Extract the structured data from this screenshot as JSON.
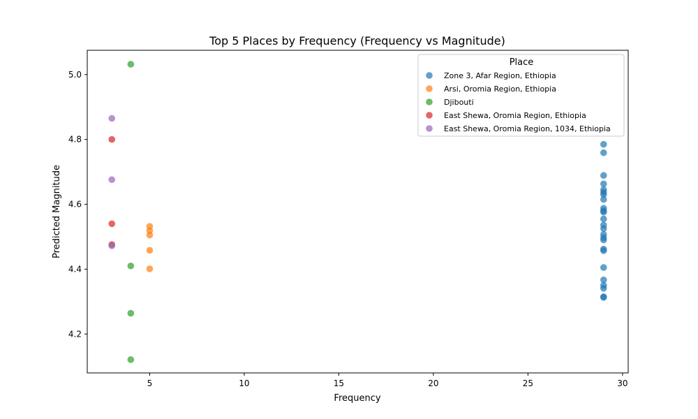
{
  "chart_data": {
    "type": "scatter",
    "title": "Top 5 Places by Frequency (Frequency vs Magnitude)",
    "xlabel": "Frequency",
    "ylabel": "Predicted Magnitude",
    "xlim": [
      1.7,
      30.3
    ],
    "ylim": [
      4.08,
      5.075
    ],
    "xticks": [
      5,
      10,
      15,
      20,
      25,
      30
    ],
    "yticks": [
      4.2,
      4.4,
      4.6,
      4.8,
      5.0
    ],
    "xtick_labels": [
      "5",
      "10",
      "15",
      "20",
      "25",
      "30"
    ],
    "ytick_labels": [
      "4.2",
      "4.4",
      "4.6",
      "4.8",
      "5.0"
    ],
    "grid": false,
    "legend": {
      "title": "Place",
      "placement": "top-right"
    },
    "series": [
      {
        "name": "Zone 3, Afar Region, Ethiopia",
        "color": "#1f77b4",
        "points": [
          [
            29,
            4.785
          ],
          [
            29,
            4.759
          ],
          [
            29,
            4.689
          ],
          [
            29,
            4.663
          ],
          [
            29,
            4.645
          ],
          [
            29,
            4.637
          ],
          [
            29,
            4.63
          ],
          [
            29,
            4.615
          ],
          [
            29,
            4.588
          ],
          [
            29,
            4.58
          ],
          [
            29,
            4.576
          ],
          [
            29,
            4.555
          ],
          [
            29,
            4.536
          ],
          [
            29,
            4.525
          ],
          [
            29,
            4.507
          ],
          [
            29,
            4.497
          ],
          [
            29,
            4.49
          ],
          [
            29,
            4.462
          ],
          [
            29,
            4.457
          ],
          [
            29,
            4.405
          ],
          [
            29,
            4.367
          ],
          [
            29,
            4.35
          ],
          [
            29,
            4.341
          ],
          [
            29,
            4.315
          ],
          [
            29,
            4.313
          ]
        ]
      },
      {
        "name": "Arsi, Oromia Region, Ethiopia",
        "color": "#ff7f0e",
        "points": [
          [
            5,
            4.532
          ],
          [
            5,
            4.519
          ],
          [
            5,
            4.505
          ],
          [
            5,
            4.458
          ],
          [
            5,
            4.401
          ]
        ]
      },
      {
        "name": "Djibouti",
        "color": "#2ca02c",
        "points": [
          [
            4,
            5.032
          ],
          [
            4,
            4.41
          ],
          [
            4,
            4.264
          ],
          [
            4,
            4.121
          ]
        ]
      },
      {
        "name": "East Shewa, Oromia Region, Ethiopia",
        "color": "#d62728",
        "points": [
          [
            3,
            4.8
          ],
          [
            3,
            4.54
          ],
          [
            3,
            4.476
          ]
        ]
      },
      {
        "name": "East Shewa, Oromia Region, 1034, Ethiopia",
        "color": "#9467bd",
        "points": [
          [
            3,
            4.865
          ],
          [
            3,
            4.676
          ],
          [
            3,
            4.472
          ]
        ]
      }
    ]
  }
}
